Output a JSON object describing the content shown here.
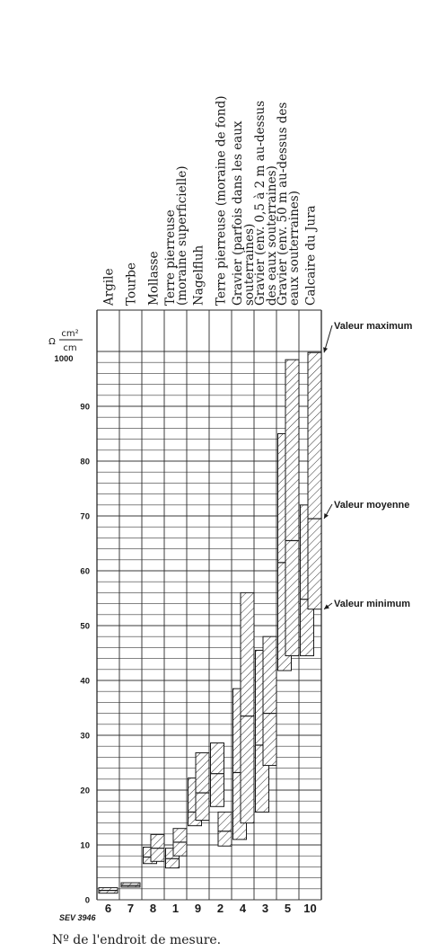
{
  "chart_data": {
    "type": "bar",
    "categories": [
      {
        "id": "6",
        "name": "Argile",
        "lines": [
          "Argile"
        ]
      },
      {
        "id": "7",
        "name": "Tourbe",
        "lines": [
          "Tourbe"
        ]
      },
      {
        "id": "8",
        "name": "Mollasse",
        "lines": [
          "Mollasse"
        ]
      },
      {
        "id": "1",
        "name": "Terre pierreuse (moraine superficielle)",
        "lines": [
          "Terre pierreuse",
          "(moraine superficielle)"
        ]
      },
      {
        "id": "9",
        "name": "Nagelfluh",
        "lines": [
          "Nagelfluh"
        ]
      },
      {
        "id": "2",
        "name": "Terre pierreuse (moraine de fond)",
        "lines": [
          "Terre pierreuse (moraine de fond)"
        ]
      },
      {
        "id": "4",
        "name": "Gravier (parfois dans les eaux souterraines)",
        "lines": [
          "Gravier (parfois dans les eaux",
          "souterraines)"
        ]
      },
      {
        "id": "3",
        "name": "Gravier (env. 0,5 à 2 m au-dessus des eaux souterraines)",
        "lines": [
          "Gravier (env. 0,5 à 2 m au-dessus",
          "des eaux souterraines)"
        ]
      },
      {
        "id": "5",
        "name": "Gravier (env. 50 m au-dessus des eaux souterraines)",
        "lines": [
          "Gravier (env. 50 m au-dessus des",
          "eaux souterraines)"
        ]
      },
      {
        "id": "10",
        "name": "Calcaire du Jura",
        "lines": [
          "Calcaire du Jura"
        ]
      }
    ],
    "boxes": [
      [
        {
          "min": 1.2,
          "mean": 1.7,
          "max": 2.2
        }
      ],
      [
        {
          "min": 2.3,
          "mean": 2.6,
          "max": 3.1
        }
      ],
      [
        {
          "min": 6.6,
          "mean": 7.8,
          "max": 9.6
        },
        {
          "min": 7.0,
          "mean": 9.4,
          "max": 11.9
        }
      ],
      [
        {
          "min": 5.8,
          "mean": 7.5,
          "max": 9.4
        },
        {
          "min": 8.0,
          "mean": 10.5,
          "max": 13.0
        }
      ],
      [
        {
          "min": 13.5,
          "mean": 16.0,
          "max": 22.2
        },
        {
          "min": 14.5,
          "mean": 19.5,
          "max": 26.8
        }
      ],
      [
        {
          "min": 17.0,
          "mean": 23.0,
          "max": 28.6
        },
        {
          "min": 9.8,
          "mean": 12.5,
          "max": 16.0
        }
      ],
      [
        {
          "min": 11.0,
          "mean": 23.2,
          "max": 38.5
        },
        {
          "min": 14.0,
          "mean": 33.5,
          "max": 56.0
        }
      ],
      [
        {
          "min": 16.0,
          "mean": 28.2,
          "max": 45.5
        },
        {
          "min": 24.5,
          "mean": 34.0,
          "max": 48.0
        }
      ],
      [
        {
          "min": 41.8,
          "mean": 61.5,
          "max": 85.0
        },
        {
          "min": 44.5,
          "mean": 65.5,
          "max": 98.5
        }
      ],
      [
        {
          "min": 44.5,
          "mean": 54.8,
          "max": 72.0
        },
        {
          "min": 53.0,
          "mean": 69.5,
          "max": 99.8
        }
      ]
    ],
    "ylim": [
      0,
      100
    ],
    "yticks": [
      0,
      10,
      20,
      30,
      40,
      50,
      60,
      70,
      80,
      90
    ],
    "ytick_top": "1000",
    "ylabel": "Ω cm²/cm",
    "ylabel_parts": {
      "omega": "Ω",
      "num": "cm²",
      "den": "cm"
    },
    "xlabel": "Nº de l'endroit de mesure.",
    "annotations": {
      "max": "Valeur maximum",
      "mean": "Valeur moyenne",
      "min": "Valeur minimum"
    },
    "figure_ref": "SEV 3946",
    "grid": true
  }
}
